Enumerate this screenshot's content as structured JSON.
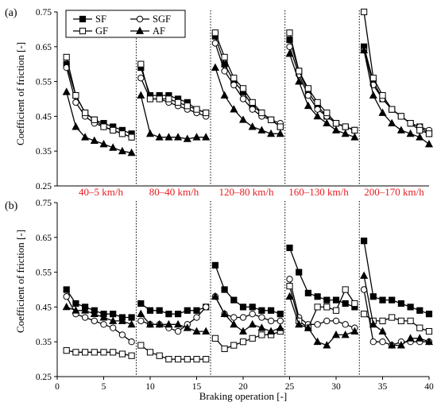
{
  "chart_data": [
    {
      "type": "line",
      "panel_label": "(a)",
      "ylabel": "Coefficient of friction [-]",
      "ylim": [
        0.25,
        0.75
      ],
      "yticks": [
        "0.25",
        "0.35",
        "0.45",
        "0.55",
        "0.65",
        "0.75"
      ],
      "xlim": [
        0,
        40
      ],
      "grid": false,
      "legend_position": "top-left",
      "separators": [
        8.5,
        16.5,
        24.5,
        32.5
      ],
      "range_labels": [
        "40–5 km/h",
        "80–40 km/h",
        "120–80 km/h",
        "160–130 km/h",
        "200–170 km/h"
      ],
      "x": [
        1,
        2,
        3,
        4,
        5,
        6,
        7,
        8,
        9,
        10,
        11,
        12,
        13,
        14,
        15,
        16,
        17,
        18,
        19,
        20,
        21,
        22,
        23,
        24,
        25,
        26,
        27,
        28,
        29,
        30,
        31,
        32,
        33,
        34,
        35,
        36,
        37,
        38,
        39,
        40
      ],
      "series": [
        {
          "name": "SF",
          "marker": "filled-square",
          "values": [
            0.6,
            0.51,
            0.46,
            0.44,
            0.43,
            0.42,
            0.41,
            0.4,
            0.59,
            0.51,
            0.51,
            0.51,
            0.5,
            0.49,
            0.47,
            0.46,
            0.68,
            0.6,
            0.55,
            0.52,
            0.48,
            0.46,
            0.44,
            0.42,
            0.67,
            0.58,
            0.52,
            0.48,
            0.45,
            0.43,
            0.42,
            0.41,
            0.65,
            0.55,
            0.5,
            0.47,
            0.45,
            0.43,
            0.42,
            0.4
          ]
        },
        {
          "name": "SGF",
          "marker": "open-circle",
          "values": [
            0.59,
            0.49,
            0.45,
            0.43,
            0.42,
            0.41,
            0.4,
            0.39,
            0.56,
            0.5,
            0.5,
            0.49,
            0.48,
            0.47,
            0.46,
            0.45,
            0.66,
            0.58,
            0.54,
            0.5,
            0.47,
            0.45,
            0.44,
            0.43,
            0.65,
            0.57,
            0.51,
            0.47,
            0.45,
            0.43,
            0.42,
            0.41,
            0.64,
            0.54,
            0.5,
            0.47,
            0.45,
            0.43,
            0.42,
            0.41
          ]
        },
        {
          "name": "GF",
          "marker": "open-square",
          "values": [
            0.62,
            0.51,
            0.46,
            0.44,
            0.42,
            0.41,
            0.4,
            0.39,
            0.6,
            0.5,
            0.5,
            0.5,
            0.49,
            0.48,
            0.47,
            0.46,
            0.69,
            0.62,
            0.56,
            0.53,
            0.49,
            0.46,
            0.44,
            0.42,
            0.69,
            0.58,
            0.53,
            0.49,
            0.46,
            0.43,
            0.42,
            0.41,
            0.75,
            0.56,
            0.51,
            0.47,
            0.45,
            0.43,
            0.41,
            0.4
          ]
        },
        {
          "name": "AF",
          "marker": "filled-triangle",
          "values": [
            0.52,
            0.42,
            0.39,
            0.38,
            0.37,
            0.36,
            0.35,
            0.345,
            0.51,
            0.4,
            0.39,
            0.39,
            0.39,
            0.385,
            0.39,
            0.39,
            0.59,
            0.51,
            0.47,
            0.44,
            0.42,
            0.41,
            0.4,
            0.4,
            0.63,
            0.55,
            0.48,
            0.45,
            0.43,
            0.41,
            0.4,
            0.39,
            0.64,
            0.51,
            0.46,
            0.43,
            0.41,
            0.4,
            0.39,
            0.37
          ]
        }
      ]
    },
    {
      "type": "line",
      "panel_label": "(b)",
      "ylabel": "Coefficient of friction [-]",
      "xlabel": "Braking operation [-]",
      "ylim": [
        0.25,
        0.75
      ],
      "yticks": [
        "0.25",
        "0.35",
        "0.45",
        "0.55",
        "0.65",
        "0.75"
      ],
      "xlim": [
        0,
        40
      ],
      "xticks": [
        "0",
        "5",
        "10",
        "15",
        "20",
        "25",
        "30",
        "35",
        "40"
      ],
      "grid": false,
      "separators": [
        8.5,
        16.5,
        24.5,
        32.5
      ],
      "x": [
        1,
        2,
        3,
        4,
        5,
        6,
        7,
        8,
        9,
        10,
        11,
        12,
        13,
        14,
        15,
        16,
        17,
        18,
        19,
        20,
        21,
        22,
        23,
        24,
        25,
        26,
        27,
        28,
        29,
        30,
        31,
        32,
        33,
        34,
        35,
        36,
        37,
        38,
        39,
        40
      ],
      "series": [
        {
          "name": "SF",
          "marker": "filled-square",
          "values": [
            0.5,
            0.46,
            0.45,
            0.44,
            0.43,
            0.43,
            0.42,
            0.42,
            0.46,
            0.44,
            0.44,
            0.43,
            0.43,
            0.44,
            0.44,
            0.45,
            0.57,
            0.5,
            0.47,
            0.45,
            0.45,
            0.44,
            0.44,
            0.43,
            0.62,
            0.55,
            0.49,
            0.48,
            0.47,
            0.47,
            0.46,
            0.45,
            0.64,
            0.48,
            0.47,
            0.47,
            0.46,
            0.45,
            0.44,
            0.43
          ]
        },
        {
          "name": "SGF",
          "marker": "open-circle",
          "values": [
            0.48,
            0.43,
            0.42,
            0.41,
            0.4,
            0.39,
            0.37,
            0.35,
            0.41,
            0.4,
            0.4,
            0.39,
            0.38,
            0.4,
            0.42,
            0.45,
            0.48,
            0.43,
            0.42,
            0.42,
            0.43,
            0.42,
            0.41,
            0.41,
            0.53,
            0.42,
            0.4,
            0.4,
            0.41,
            0.41,
            0.4,
            0.39,
            0.5,
            0.35,
            0.35,
            0.34,
            0.35,
            0.35,
            0.35,
            0.35
          ]
        },
        {
          "name": "GF",
          "marker": "open-square",
          "values": [
            0.325,
            0.32,
            0.32,
            0.32,
            0.32,
            0.32,
            0.315,
            0.31,
            0.34,
            0.32,
            0.31,
            0.3,
            0.3,
            0.3,
            0.3,
            0.3,
            0.36,
            0.33,
            0.34,
            0.35,
            0.36,
            0.37,
            0.37,
            0.38,
            0.51,
            0.41,
            0.39,
            0.45,
            0.45,
            0.44,
            0.5,
            0.46,
            0.43,
            0.41,
            0.41,
            0.42,
            0.41,
            0.41,
            0.39,
            0.38
          ]
        },
        {
          "name": "AF",
          "marker": "filled-triangle",
          "values": [
            0.45,
            0.44,
            0.44,
            0.43,
            0.42,
            0.41,
            0.41,
            0.4,
            0.43,
            0.4,
            0.4,
            0.4,
            0.4,
            0.39,
            0.38,
            0.38,
            0.48,
            0.43,
            0.4,
            0.38,
            0.4,
            0.39,
            0.38,
            0.39,
            0.48,
            0.4,
            0.39,
            0.35,
            0.34,
            0.37,
            0.37,
            0.38,
            0.54,
            0.4,
            0.38,
            0.34,
            0.34,
            0.36,
            0.36,
            0.35
          ]
        }
      ]
    }
  ]
}
